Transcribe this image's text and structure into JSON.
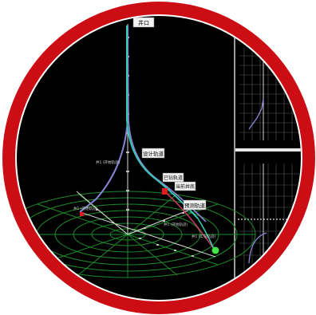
{
  "labels": {
    "top": "井口",
    "left_tick": "井1 (开始轨迹)",
    "upper_tick": "井1 (开始轨迹)",
    "right_tick": "井1 (开始轨迹)",
    "design": "设计轨道",
    "drilled": "已钻轨道",
    "current": "当前井底",
    "predict": "预测轨道",
    "well_end": "井1 (实钻轨迹)"
  },
  "colors": {
    "frame_red": "#cc0d14",
    "background": "#000000",
    "grid_green": "#1f8a2a",
    "axis_white": "#d8d8d8",
    "design_path": "#8a86d6",
    "drilled_path": "#39c7b5",
    "pink_path": "#c43a62",
    "bit_red": "#e21b1b",
    "green_marker": "#43e64a"
  },
  "icons": {
    "current_bit": "drill-bit-icon",
    "end_marker": "target-dot-icon"
  }
}
